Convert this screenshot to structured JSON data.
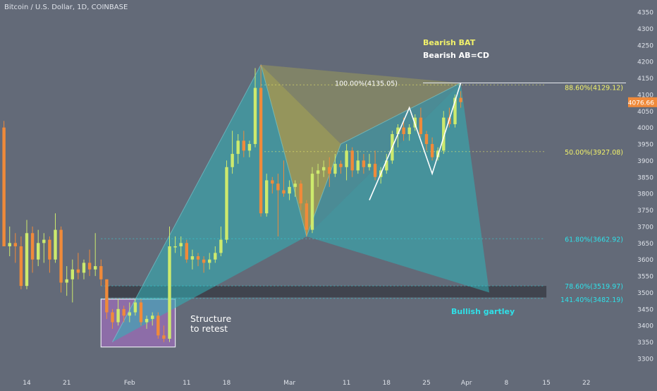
{
  "header": {
    "symbol_title": "Bitcoin / U.S. Dollar, 1D, COINBASE"
  },
  "colors": {
    "background": "#636a78",
    "candle_up": "#cdea6d",
    "candle_down": "#f08a3a",
    "bat_fill": "#b8b24a",
    "bat_outer_fill": "#2fb3b8",
    "gartley_fill": "#2fb3b8",
    "fib_yellow": "#f2f26a",
    "fib_cyan": "#2fe0e8",
    "price_tag": "#f08a3a",
    "support_zone": "#3c4049",
    "box_fill": "#9b6fb8"
  },
  "chart_data": {
    "type": "candlestick",
    "title": "Bitcoin / U.S. Dollar, 1D, COINBASE",
    "ylim": [
      3250,
      4400
    ],
    "y_ticks": [
      3300,
      3350,
      3400,
      3450,
      3500,
      3550,
      3600,
      3650,
      3700,
      3750,
      3800,
      3850,
      3900,
      3950,
      4000,
      4050,
      4100,
      4150,
      4200,
      4250,
      4300,
      4350
    ],
    "x_ticks": [
      {
        "label": "14",
        "x": "2019-01-14"
      },
      {
        "label": "21",
        "x": "2019-01-21"
      },
      {
        "label": "Feb",
        "x": "2019-02-01"
      },
      {
        "label": "11",
        "x": "2019-02-11"
      },
      {
        "label": "18",
        "x": "2019-02-18"
      },
      {
        "label": "Mar",
        "x": "2019-03-01"
      },
      {
        "label": "11",
        "x": "2019-03-11"
      },
      {
        "label": "18",
        "x": "2019-03-18"
      },
      {
        "label": "25",
        "x": "2019-03-25"
      },
      {
        "label": "Apr",
        "x": "2019-04-01"
      },
      {
        "label": "8",
        "x": "2019-04-08"
      },
      {
        "label": "15",
        "x": "2019-04-15"
      },
      {
        "label": "22",
        "x": "2019-04-22"
      }
    ],
    "current_price": {
      "label": "4076.66",
      "value": 4076.66
    },
    "candles": [
      {
        "date": "2019-01-10",
        "o": 4000,
        "h": 4020,
        "l": 3640,
        "c": 3640
      },
      {
        "date": "2019-01-11",
        "o": 3640,
        "h": 3700,
        "l": 3610,
        "c": 3650
      },
      {
        "date": "2019-01-12",
        "o": 3650,
        "h": 3680,
        "l": 3590,
        "c": 3640
      },
      {
        "date": "2019-01-13",
        "o": 3640,
        "h": 3670,
        "l": 3510,
        "c": 3520
      },
      {
        "date": "2019-01-14",
        "o": 3520,
        "h": 3720,
        "l": 3510,
        "c": 3680
      },
      {
        "date": "2019-01-15",
        "o": 3680,
        "h": 3700,
        "l": 3560,
        "c": 3600
      },
      {
        "date": "2019-01-16",
        "o": 3600,
        "h": 3690,
        "l": 3580,
        "c": 3650
      },
      {
        "date": "2019-01-17",
        "o": 3650,
        "h": 3680,
        "l": 3590,
        "c": 3660
      },
      {
        "date": "2019-01-18",
        "o": 3660,
        "h": 3670,
        "l": 3560,
        "c": 3600
      },
      {
        "date": "2019-01-19",
        "o": 3600,
        "h": 3740,
        "l": 3590,
        "c": 3690
      },
      {
        "date": "2019-01-20",
        "o": 3690,
        "h": 3700,
        "l": 3500,
        "c": 3530
      },
      {
        "date": "2019-01-21",
        "o": 3530,
        "h": 3580,
        "l": 3490,
        "c": 3540
      },
      {
        "date": "2019-01-22",
        "o": 3540,
        "h": 3600,
        "l": 3470,
        "c": 3570
      },
      {
        "date": "2019-01-23",
        "o": 3570,
        "h": 3620,
        "l": 3540,
        "c": 3560
      },
      {
        "date": "2019-01-24",
        "o": 3560,
        "h": 3600,
        "l": 3540,
        "c": 3590
      },
      {
        "date": "2019-01-25",
        "o": 3590,
        "h": 3630,
        "l": 3550,
        "c": 3570
      },
      {
        "date": "2019-01-26",
        "o": 3570,
        "h": 3680,
        "l": 3550,
        "c": 3580
      },
      {
        "date": "2019-01-27",
        "o": 3580,
        "h": 3600,
        "l": 3520,
        "c": 3540
      },
      {
        "date": "2019-01-28",
        "o": 3540,
        "h": 3540,
        "l": 3420,
        "c": 3440
      },
      {
        "date": "2019-01-29",
        "o": 3440,
        "h": 3450,
        "l": 3390,
        "c": 3410
      },
      {
        "date": "2019-01-30",
        "o": 3410,
        "h": 3480,
        "l": 3400,
        "c": 3450
      },
      {
        "date": "2019-01-31",
        "o": 3450,
        "h": 3460,
        "l": 3410,
        "c": 3430
      },
      {
        "date": "2019-02-01",
        "o": 3430,
        "h": 3470,
        "l": 3410,
        "c": 3440
      },
      {
        "date": "2019-02-02",
        "o": 3440,
        "h": 3480,
        "l": 3430,
        "c": 3470
      },
      {
        "date": "2019-02-03",
        "o": 3470,
        "h": 3480,
        "l": 3400,
        "c": 3410
      },
      {
        "date": "2019-02-04",
        "o": 3410,
        "h": 3430,
        "l": 3390,
        "c": 3420
      },
      {
        "date": "2019-02-05",
        "o": 3420,
        "h": 3440,
        "l": 3400,
        "c": 3430
      },
      {
        "date": "2019-02-06",
        "o": 3430,
        "h": 3440,
        "l": 3360,
        "c": 3370
      },
      {
        "date": "2019-02-07",
        "o": 3370,
        "h": 3400,
        "l": 3350,
        "c": 3360
      },
      {
        "date": "2019-02-08",
        "o": 3360,
        "h": 3700,
        "l": 3350,
        "c": 3640
      },
      {
        "date": "2019-02-09",
        "o": 3640,
        "h": 3670,
        "l": 3620,
        "c": 3640
      },
      {
        "date": "2019-02-10",
        "o": 3640,
        "h": 3670,
        "l": 3610,
        "c": 3650
      },
      {
        "date": "2019-02-11",
        "o": 3650,
        "h": 3660,
        "l": 3590,
        "c": 3600
      },
      {
        "date": "2019-02-12",
        "o": 3600,
        "h": 3630,
        "l": 3570,
        "c": 3610
      },
      {
        "date": "2019-02-13",
        "o": 3610,
        "h": 3620,
        "l": 3580,
        "c": 3600
      },
      {
        "date": "2019-02-14",
        "o": 3600,
        "h": 3610,
        "l": 3560,
        "c": 3590
      },
      {
        "date": "2019-02-15",
        "o": 3590,
        "h": 3620,
        "l": 3570,
        "c": 3600
      },
      {
        "date": "2019-02-16",
        "o": 3600,
        "h": 3640,
        "l": 3590,
        "c": 3620
      },
      {
        "date": "2019-02-17",
        "o": 3620,
        "h": 3700,
        "l": 3610,
        "c": 3660
      },
      {
        "date": "2019-02-18",
        "o": 3660,
        "h": 3900,
        "l": 3650,
        "c": 3880
      },
      {
        "date": "2019-02-19",
        "o": 3880,
        "h": 3990,
        "l": 3860,
        "c": 3920
      },
      {
        "date": "2019-02-20",
        "o": 3920,
        "h": 3980,
        "l": 3890,
        "c": 3960
      },
      {
        "date": "2019-02-21",
        "o": 3960,
        "h": 3990,
        "l": 3910,
        "c": 3930
      },
      {
        "date": "2019-02-22",
        "o": 3930,
        "h": 3960,
        "l": 3910,
        "c": 3950
      },
      {
        "date": "2019-02-23",
        "o": 3950,
        "h": 4180,
        "l": 3940,
        "c": 4120
      },
      {
        "date": "2019-02-24",
        "o": 4120,
        "h": 4190,
        "l": 3730,
        "c": 3740
      },
      {
        "date": "2019-02-25",
        "o": 3740,
        "h": 3860,
        "l": 3730,
        "c": 3840
      },
      {
        "date": "2019-02-26",
        "o": 3840,
        "h": 3850,
        "l": 3800,
        "c": 3830
      },
      {
        "date": "2019-02-27",
        "o": 3830,
        "h": 3860,
        "l": 3670,
        "c": 3810
      },
      {
        "date": "2019-02-28",
        "o": 3810,
        "h": 3900,
        "l": 3790,
        "c": 3800
      },
      {
        "date": "2019-03-01",
        "o": 3800,
        "h": 3840,
        "l": 3780,
        "c": 3820
      },
      {
        "date": "2019-03-02",
        "o": 3820,
        "h": 3840,
        "l": 3790,
        "c": 3830
      },
      {
        "date": "2019-03-03",
        "o": 3830,
        "h": 3840,
        "l": 3750,
        "c": 3770
      },
      {
        "date": "2019-03-04",
        "o": 3770,
        "h": 3780,
        "l": 3670,
        "c": 3690
      },
      {
        "date": "2019-03-05",
        "o": 3690,
        "h": 3880,
        "l": 3680,
        "c": 3860
      },
      {
        "date": "2019-03-06",
        "o": 3860,
        "h": 3890,
        "l": 3820,
        "c": 3870
      },
      {
        "date": "2019-03-07",
        "o": 3870,
        "h": 3900,
        "l": 3850,
        "c": 3880
      },
      {
        "date": "2019-03-08",
        "o": 3880,
        "h": 3910,
        "l": 3820,
        "c": 3860
      },
      {
        "date": "2019-03-09",
        "o": 3860,
        "h": 3920,
        "l": 3850,
        "c": 3890
      },
      {
        "date": "2019-03-10",
        "o": 3890,
        "h": 3900,
        "l": 3860,
        "c": 3880
      },
      {
        "date": "2019-03-11",
        "o": 3880,
        "h": 3950,
        "l": 3840,
        "c": 3930
      },
      {
        "date": "2019-03-12",
        "o": 3930,
        "h": 3940,
        "l": 3850,
        "c": 3870
      },
      {
        "date": "2019-03-13",
        "o": 3870,
        "h": 3930,
        "l": 3860,
        "c": 3900
      },
      {
        "date": "2019-03-14",
        "o": 3900,
        "h": 3920,
        "l": 3860,
        "c": 3880
      },
      {
        "date": "2019-03-15",
        "o": 3880,
        "h": 3920,
        "l": 3870,
        "c": 3890
      },
      {
        "date": "2019-03-16",
        "o": 3890,
        "h": 3930,
        "l": 3840,
        "c": 3850
      },
      {
        "date": "2019-03-17",
        "o": 3850,
        "h": 3880,
        "l": 3830,
        "c": 3870
      },
      {
        "date": "2019-03-18",
        "o": 3870,
        "h": 3920,
        "l": 3860,
        "c": 3900
      },
      {
        "date": "2019-03-19",
        "o": 3900,
        "h": 3990,
        "l": 3890,
        "c": 3980
      },
      {
        "date": "2019-03-20",
        "o": 3980,
        "h": 4010,
        "l": 3940,
        "c": 4000
      },
      {
        "date": "2019-03-21",
        "o": 4000,
        "h": 4030,
        "l": 3960,
        "c": 3980
      },
      {
        "date": "2019-03-22",
        "o": 3980,
        "h": 4010,
        "l": 3960,
        "c": 4000
      },
      {
        "date": "2019-03-23",
        "o": 4000,
        "h": 4040,
        "l": 3990,
        "c": 4030
      },
      {
        "date": "2019-03-24",
        "o": 4030,
        "h": 4060,
        "l": 3970,
        "c": 3980
      },
      {
        "date": "2019-03-25",
        "o": 3980,
        "h": 3990,
        "l": 3930,
        "c": 3950
      },
      {
        "date": "2019-03-26",
        "o": 3950,
        "h": 3970,
        "l": 3900,
        "c": 3910
      },
      {
        "date": "2019-03-27",
        "o": 3910,
        "h": 3940,
        "l": 3900,
        "c": 3930
      },
      {
        "date": "2019-03-28",
        "o": 3930,
        "h": 4050,
        "l": 3920,
        "c": 4030
      },
      {
        "date": "2019-03-29",
        "o": 4030,
        "h": 4060,
        "l": 4000,
        "c": 4010
      },
      {
        "date": "2019-03-30",
        "o": 4010,
        "h": 4100,
        "l": 4000,
        "c": 4090
      },
      {
        "date": "2019-03-31",
        "o": 4090,
        "h": 4110,
        "l": 4060,
        "c": 4077
      }
    ],
    "patterns": {
      "bearish_bat": [
        {
          "date": "2019-01-29",
          "price": 3350
        },
        {
          "date": "2019-02-24",
          "price": 4190
        },
        {
          "date": "2019-03-04",
          "price": 3670
        },
        {
          "date": "2019-03-10",
          "price": 3950
        },
        {
          "date": "2019-03-31",
          "price": 4135
        }
      ],
      "bullish_gartley": [
        {
          "date": "2019-02-24",
          "price": 4190
        },
        {
          "date": "2019-03-04",
          "price": 3670
        },
        {
          "date": "2019-03-31",
          "price": 4135
        },
        {
          "date": "2019-04-05",
          "price": 3500
        }
      ],
      "abcd": [
        {
          "date": "2019-03-15",
          "price": 3780
        },
        {
          "date": "2019-03-22",
          "price": 4060
        },
        {
          "date": "2019-03-26",
          "price": 3860
        },
        {
          "date": "2019-03-31",
          "price": 4135
        }
      ]
    },
    "fib_levels": [
      {
        "label": "100.00%(4135.05)",
        "value": 4135.05
      },
      {
        "label": "88.60%(4129.12)",
        "value": 4129.12
      },
      {
        "label": "50.00%(3927.08)",
        "value": 3927.08
      },
      {
        "label": "61.80%(3662.92)",
        "value": 3662.92
      },
      {
        "label": "78.60%(3519.97)",
        "value": 3519.97
      },
      {
        "label": "141.40%(3482.19)",
        "value": 3482.19
      }
    ],
    "annotations": {
      "bearish_bat": "Bearish BAT",
      "bearish_abcd": "Bearish AB=CD",
      "bullish_gartley": "Bullish gartley",
      "structure_line1": "Structure",
      "structure_line2": "to retest"
    },
    "structure_box": {
      "date_from": "2019-01-27",
      "date_to": "2019-02-09",
      "price_from": 3335,
      "price_to": 3480
    },
    "support_zone": {
      "date_from": "2019-01-28",
      "date_to": "2019-04-15",
      "price_from": 3485,
      "price_to": 3520
    }
  }
}
